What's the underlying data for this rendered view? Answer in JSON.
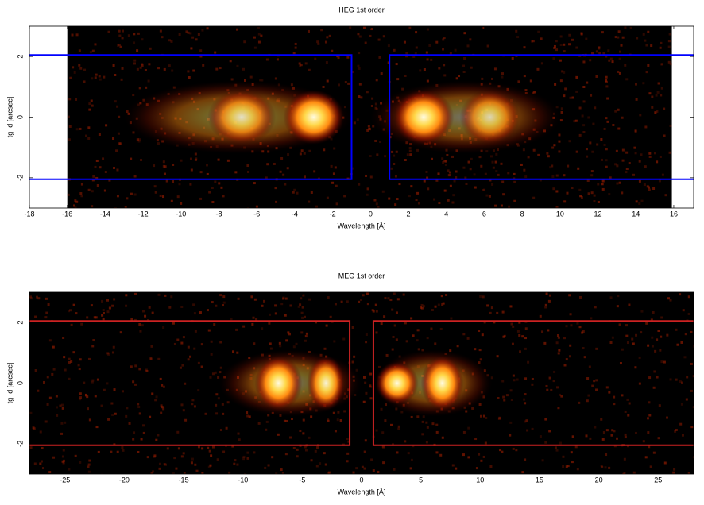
{
  "chart_data": [
    {
      "type": "heatmap",
      "title": "HEG 1st order",
      "xlabel": "Wavelength [Å]",
      "ylabel": "tg_d [arcsec]",
      "xlim": [
        -18,
        17.05
      ],
      "ylim": [
        -3,
        3
      ],
      "xticks": [
        -18,
        -16,
        -14,
        -12,
        -10,
        -8,
        -6,
        -4,
        -2,
        0,
        2,
        4,
        6,
        8,
        10,
        12,
        14,
        16
      ],
      "yticks": [
        -2,
        0,
        2
      ],
      "coverage_x": [
        -16,
        15.9
      ],
      "region_color": "#0000ff",
      "regions": [
        {
          "x": [
            -20,
            -1
          ],
          "y": [
            -2.05,
            2.05
          ]
        },
        {
          "x": [
            1,
            20
          ],
          "y": [
            -2.05,
            2.05
          ]
        }
      ],
      "clusters": [
        {
          "x": -7,
          "y": 0,
          "sx": 6,
          "sy": 1.2,
          "level": 0.45
        },
        {
          "x": -6.8,
          "y": 0,
          "sx": 1.8,
          "sy": 0.9,
          "level": 0.8
        },
        {
          "x": -3,
          "y": 0,
          "sx": 1.6,
          "sy": 0.9,
          "level": 1
        },
        {
          "x": 5,
          "y": 0,
          "sx": 5,
          "sy": 1.2,
          "level": 0.45
        },
        {
          "x": 2.8,
          "y": 0,
          "sx": 1.6,
          "sy": 0.9,
          "level": 1
        },
        {
          "x": 6.3,
          "y": 0,
          "sx": 1.6,
          "sy": 0.9,
          "level": 0.75
        }
      ]
    },
    {
      "type": "heatmap",
      "title": "MEG 1st order",
      "xlabel": "Wavelength [Å]",
      "ylabel": "tg_d [arcsec]",
      "xlim": [
        -28,
        28
      ],
      "ylim": [
        -3,
        3
      ],
      "xticks": [
        -25,
        -20,
        -15,
        -10,
        -5,
        0,
        5,
        10,
        15,
        20,
        25
      ],
      "yticks": [
        -2,
        0,
        2
      ],
      "region_color": "#cc2222",
      "regions": [
        {
          "x": [
            -30,
            -1
          ],
          "y": [
            -2.05,
            2.05
          ]
        },
        {
          "x": [
            1,
            30
          ],
          "y": [
            -2.05,
            2.05
          ]
        }
      ],
      "clusters": [
        {
          "x": -6,
          "y": 0,
          "sx": 6,
          "sy": 1.1,
          "level": 0.45
        },
        {
          "x": -7,
          "y": 0,
          "sx": 2,
          "sy": 0.9,
          "level": 1
        },
        {
          "x": -3,
          "y": 0,
          "sx": 1.6,
          "sy": 0.9,
          "level": 0.95
        },
        {
          "x": 6,
          "y": 0,
          "sx": 5,
          "sy": 1.1,
          "level": 0.45
        },
        {
          "x": 3,
          "y": 0,
          "sx": 1.8,
          "sy": 0.7,
          "level": 1
        },
        {
          "x": 6.8,
          "y": 0,
          "sx": 1.8,
          "sy": 0.9,
          "level": 1
        }
      ]
    }
  ]
}
